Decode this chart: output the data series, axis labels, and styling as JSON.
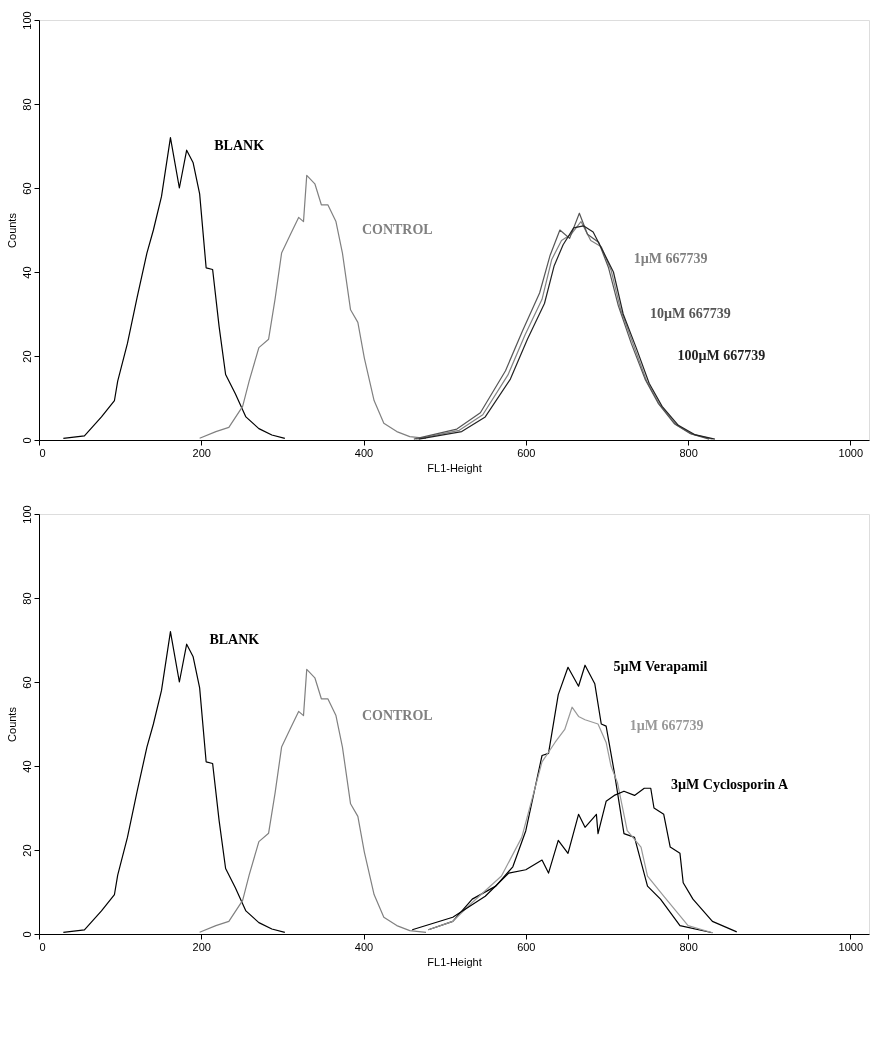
{
  "chart_data": [
    {
      "type": "line",
      "xlabel": "FL1-Height",
      "ylabel": "Counts",
      "xlim": [
        0,
        1023
      ],
      "ylim": [
        0,
        100
      ],
      "xticks": [
        0,
        200,
        400,
        600,
        800,
        1000
      ],
      "yticks": [
        0,
        20,
        40,
        60,
        80,
        100
      ],
      "grid": false,
      "line_style": "solid",
      "marker": "none",
      "series": [
        {
          "name": "BLANK",
          "color": "#000000",
          "x": [
            30,
            56,
            77,
            93,
            97,
            109,
            121,
            133,
            141,
            151,
            162,
            173,
            182,
            190,
            198,
            206,
            214,
            222,
            230,
            242,
            255,
            271,
            287,
            303
          ],
          "values": [
            0.4,
            1,
            5.5,
            9.4,
            14,
            23,
            34,
            44.5,
            50,
            58,
            72,
            60,
            69,
            66,
            58.6,
            41,
            40.6,
            27,
            15.6,
            11,
            5.5,
            2.7,
            1.2,
            0.4
          ]
        },
        {
          "name": "CONTROL",
          "color": "#808080",
          "x": [
            198,
            218,
            234,
            251,
            259,
            271,
            283,
            291,
            299,
            310,
            320,
            326,
            330,
            340,
            348,
            356,
            366,
            374,
            384,
            393,
            401,
            413,
            425,
            441,
            457,
            477
          ],
          "values": [
            0.4,
            2,
            3,
            8,
            14,
            22,
            24,
            33.6,
            44.5,
            49,
            53,
            52,
            63,
            61,
            56,
            56,
            52,
            44.5,
            31,
            28,
            19.5,
            9.4,
            4,
            2,
            0.8,
            0.4
          ]
        },
        {
          "name": "1µM  667739",
          "color": "#808080",
          "x": [
            465,
            518,
            547,
            578,
            599,
            620,
            632,
            644,
            656,
            668,
            680,
            693,
            705,
            717,
            733,
            749,
            765,
            785,
            805,
            830
          ],
          "values": [
            0.2,
            2.3,
            6,
            15.5,
            25,
            33.5,
            43,
            47.5,
            49,
            52,
            47.5,
            46,
            40.5,
            31,
            22.5,
            14,
            8.4,
            3.7,
            1.4,
            0.2
          ]
        },
        {
          "name": "10µM  667739",
          "color": "#555555",
          "x": [
            462,
            515,
            544,
            575,
            596,
            617,
            630,
            642,
            654,
            666,
            676,
            690,
            702,
            714,
            730,
            747,
            763,
            783,
            803,
            826
          ],
          "values": [
            0.2,
            2.6,
            6.5,
            16.5,
            26,
            35,
            44,
            50,
            48,
            54,
            49,
            47,
            41,
            32,
            23,
            14.5,
            8.8,
            3.9,
            1.5,
            0.2
          ]
        },
        {
          "name": "100µM  667739",
          "color": "#222222",
          "x": [
            468,
            521,
            550,
            581,
            602,
            623,
            635,
            646,
            659,
            671,
            683,
            695,
            708,
            720,
            736,
            752,
            768,
            788,
            808,
            833
          ],
          "values": [
            0.2,
            2,
            5.5,
            14.5,
            24,
            32.5,
            41.5,
            46.5,
            50.5,
            51,
            49.5,
            45,
            40,
            30,
            22,
            13.5,
            8,
            3.5,
            1.3,
            0.2
          ]
        }
      ]
    },
    {
      "type": "line",
      "xlabel": "FL1-Height",
      "ylabel": "Counts",
      "xlim": [
        0,
        1023
      ],
      "ylim": [
        0,
        100
      ],
      "xticks": [
        0,
        200,
        400,
        600,
        800,
        1000
      ],
      "yticks": [
        0,
        20,
        40,
        60,
        80,
        100
      ],
      "grid": false,
      "line_style": "solid",
      "marker": "none",
      "series": [
        {
          "name": "BLANK",
          "color": "#000000",
          "x": [
            30,
            56,
            77,
            93,
            97,
            109,
            121,
            133,
            141,
            151,
            162,
            173,
            182,
            190,
            198,
            206,
            214,
            222,
            230,
            242,
            255,
            271,
            287,
            303
          ],
          "values": [
            0.4,
            1,
            5.5,
            9.4,
            14,
            23,
            34,
            44.5,
            50,
            58,
            72,
            60,
            69,
            66,
            58.6,
            41,
            40.6,
            27,
            15.6,
            11,
            5.5,
            2.7,
            1.2,
            0.4
          ]
        },
        {
          "name": "CONTROL",
          "color": "#808080",
          "x": [
            198,
            218,
            234,
            251,
            259,
            271,
            283,
            291,
            299,
            310,
            320,
            326,
            330,
            340,
            348,
            356,
            366,
            374,
            384,
            393,
            401,
            413,
            425,
            441,
            457,
            477
          ],
          "values": [
            0.4,
            2,
            3,
            8,
            14,
            22,
            24,
            33.6,
            44.5,
            49,
            53,
            52,
            63,
            61,
            56,
            56,
            52,
            44.5,
            31,
            28,
            19.5,
            9.4,
            4,
            2,
            0.8,
            0.4
          ]
        },
        {
          "name": "5µM  Verapamil",
          "color": "#000000",
          "x": [
            480,
            510,
            534,
            563,
            584,
            600,
            620,
            628,
            640,
            652,
            665,
            673,
            685,
            693,
            699,
            709,
            721,
            734,
            750,
            766,
            790,
            830
          ],
          "values": [
            1,
            3,
            8.3,
            11.4,
            16,
            24.6,
            42.5,
            43,
            57,
            63.5,
            59,
            64,
            59.6,
            50,
            49.5,
            38.6,
            23.9,
            23,
            11.4,
            8.3,
            2,
            0.3
          ]
        },
        {
          "name": "1µM  667739",
          "color": "#999999",
          "x": [
            480,
            510,
            534,
            570,
            595,
            620,
            636,
            648,
            657,
            665,
            673,
            689,
            699,
            705,
            713,
            725,
            742,
            750,
            770,
            800,
            830
          ],
          "values": [
            1,
            3,
            7.5,
            13.8,
            23,
            41,
            45.6,
            48.7,
            54,
            51.8,
            51,
            50,
            45.6,
            40,
            36,
            24.6,
            20.7,
            13.8,
            9,
            2,
            0.3
          ]
        },
        {
          "name": "3µM  Cyclosporin  A",
          "color": "#000000",
          "x": [
            460,
            510,
            550,
            579,
            600,
            620,
            628,
            640,
            652,
            665,
            673,
            687,
            689,
            699,
            709,
            721,
            734,
            746,
            754,
            758,
            770,
            778,
            790,
            794,
            806,
            830,
            860
          ],
          "values": [
            1,
            4,
            9,
            14.5,
            15.3,
            17.6,
            14.5,
            22.3,
            19.2,
            28.5,
            25.4,
            28.5,
            23.9,
            31.6,
            33,
            34,
            33,
            34.7,
            34.7,
            30,
            28.5,
            20.7,
            19.2,
            12.2,
            8.3,
            3,
            0.5
          ]
        }
      ]
    }
  ]
}
